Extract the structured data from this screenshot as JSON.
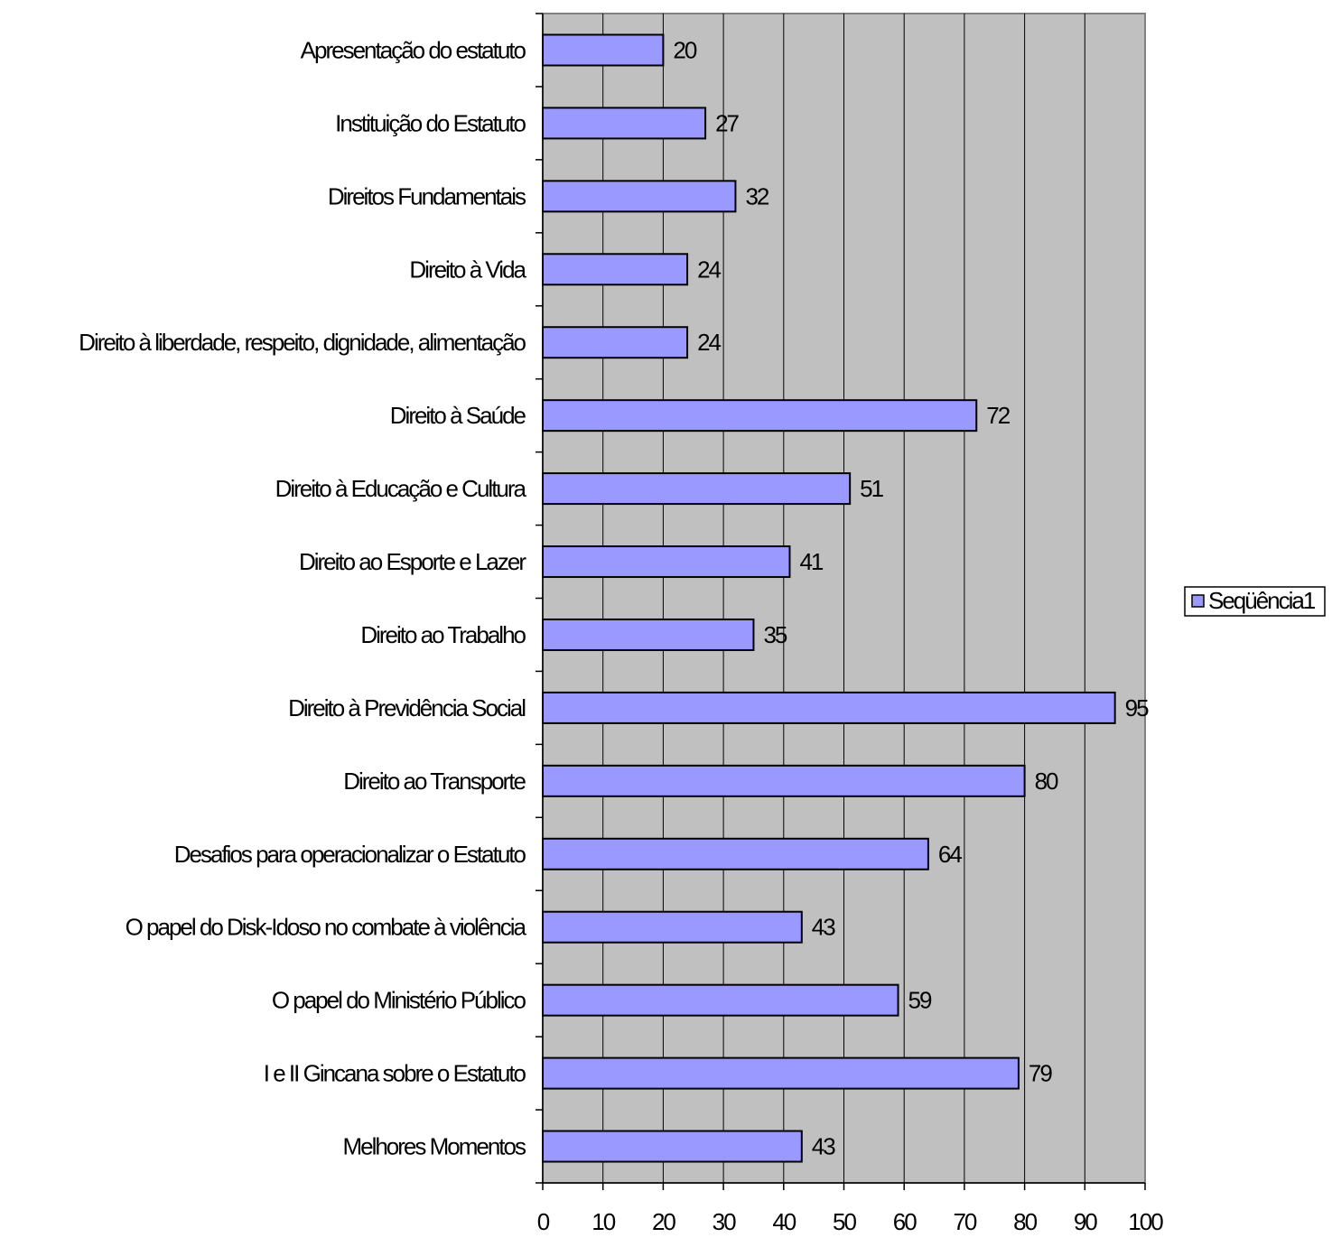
{
  "chart_data": {
    "type": "bar",
    "orientation": "horizontal",
    "categories": [
      "Apresentação do estatuto",
      "Instituição do Estatuto",
      "Direitos Fundamentais",
      "Direito à Vida",
      "Direito à liberdade, respeito, dignidade, alimentação",
      "Direito à Saúde",
      "Direito à Educação e Cultura",
      "Direito ao Esporte e Lazer",
      "Direito ao Trabalho",
      "Direito à Previdência Social",
      "Direito ao Transporte",
      "Desafios para operacionalizar o Estatuto",
      "O papel do Disk-Idoso no combate à violência",
      "O papel do Ministério Público",
      "I e II Gincana sobre o Estatuto",
      "Melhores Momentos"
    ],
    "series": [
      {
        "name": "Seqüência1",
        "values": [
          20,
          27,
          32,
          24,
          24,
          72,
          51,
          41,
          35,
          95,
          80,
          64,
          43,
          59,
          79,
          43
        ]
      }
    ],
    "xlim": [
      0,
      100
    ],
    "xticks": [
      "0",
      "10",
      "20",
      "30",
      "40",
      "50",
      "60",
      "70",
      "80",
      "90",
      "100"
    ],
    "grid": "vertical",
    "legend": "right",
    "title": "",
    "xlabel": "",
    "ylabel": "",
    "colors": {
      "plot_background": "#c0c0c0",
      "bar_fill": "#9999ff",
      "bar_stroke": "#000000",
      "gridline": "#000000"
    }
  }
}
